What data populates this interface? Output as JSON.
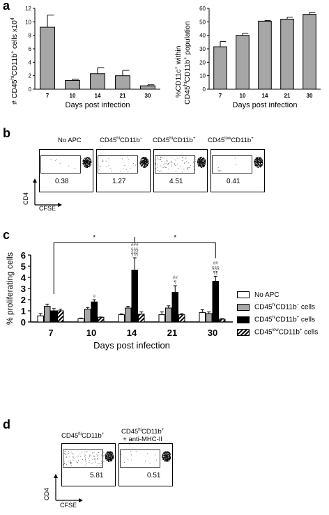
{
  "panel_labels": {
    "a": "a",
    "b": "b",
    "c": "c",
    "d": "d"
  },
  "colors": {
    "bar_gray": "#a6a6a6",
    "black": "#000000",
    "white": "#ffffff"
  },
  "chart_data": [
    {
      "id": "a_left",
      "type": "bar",
      "categories": [
        "7",
        "10",
        "14",
        "21",
        "30"
      ],
      "values": [
        9.2,
        1.3,
        2.3,
        2.0,
        0.5
      ],
      "errors": [
        1.8,
        0.2,
        0.9,
        0.8,
        0.15
      ],
      "ylim": [
        0,
        12
      ],
      "yticks": [
        "0",
        "2",
        "4",
        "6",
        "8",
        "10",
        "12"
      ],
      "xlabel": "Days post infection",
      "ylabel": "# CD45hiCD11b+ cells x10^4"
    },
    {
      "id": "a_right",
      "type": "bar",
      "categories": [
        "7",
        "10",
        "14",
        "21",
        "30"
      ],
      "values": [
        31.5,
        40,
        50.5,
        52,
        55.5
      ],
      "errors": [
        4,
        1.5,
        0.5,
        1.5,
        1.5
      ],
      "ylim": [
        0,
        60
      ],
      "yticks": [
        "0",
        "10",
        "20",
        "30",
        "40",
        "50",
        "60"
      ],
      "xlabel": "Days post infection",
      "ylabel": "%CD11c+ within CD45hiCD11b+ population"
    },
    {
      "id": "c",
      "type": "bar",
      "categories": [
        "7",
        "10",
        "14",
        "21",
        "30"
      ],
      "ylim": [
        0,
        6
      ],
      "yticks": [
        "0",
        "1",
        "2",
        "3",
        "4",
        "5",
        "6"
      ],
      "xlabel": "Days post infection",
      "ylabel": "% proliferating cells",
      "series": [
        {
          "name": "No APC",
          "values": [
            0.55,
            0.3,
            0.65,
            0.65,
            0.85
          ],
          "errors": [
            0.2,
            0.05,
            0.08,
            0.25,
            0.25
          ]
        },
        {
          "name": "CD45hiCD11b- cells",
          "values": [
            1.4,
            1.15,
            1.25,
            1.25,
            0.75
          ],
          "errors": [
            0.2,
            0.15,
            0.15,
            0.2,
            0.15
          ]
        },
        {
          "name": "CD45hiCD11b+ cells",
          "values": [
            1.0,
            1.8,
            4.65,
            2.65,
            3.65
          ],
          "errors": [
            0.2,
            0.2,
            1.1,
            0.6,
            0.45
          ]
        },
        {
          "name": "CD45lowCD11b+ cells",
          "values": [
            1.0,
            0.42,
            0.7,
            0.65,
            0.25
          ],
          "errors": [
            0.15,
            0.03,
            0.2,
            0.1,
            0.05
          ]
        }
      ],
      "annotations": {
        "bracket_star_left": "*",
        "bracket_star_right": "*",
        "d10": [
          "#"
        ],
        "d14": [
          "###",
          "§§§",
          "¶¶¶"
        ],
        "d21": [
          "##",
          "¶"
        ],
        "d30": [
          "##",
          "§§§",
          "¶¶"
        ]
      }
    }
  ],
  "panel_b": {
    "titles": [
      "No APC",
      "CD45hiCD11b-",
      "CD45hiCD11b+",
      "CD45lowCD11b+"
    ],
    "values": [
      "0.38",
      "1.27",
      "4.51",
      "0.41"
    ],
    "ylabel": "CD4",
    "xlabel": "CFSE"
  },
  "panel_d": {
    "titles": [
      "CD45hiCD11b+",
      "CD45hiCD11b+"
    ],
    "title2_line2": "+ anti-MHC-II",
    "values": [
      "5.81",
      "0.51"
    ],
    "ylabel": "CD4",
    "xlabel": "CFSE"
  },
  "legend": [
    "No APC",
    "CD45hiCD11b- cells",
    "CD45hiCD11b+ cells",
    "CD45lowCD11b+ cells"
  ]
}
